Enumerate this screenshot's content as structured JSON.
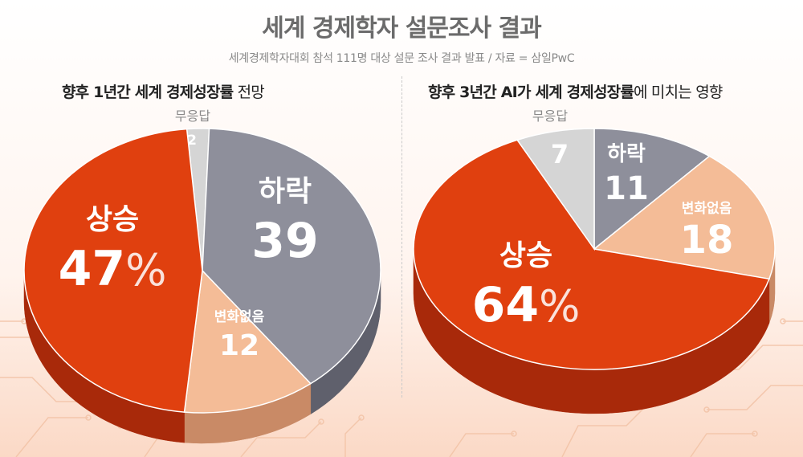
{
  "header": {
    "title": "세계 경제학자 설문조사 결과",
    "subtitle": "세계경제학자대회 참석 111명 대상 설문 조사 결과 발표 / 자료 = 삼일PwC"
  },
  "colors": {
    "up": "#e0400f",
    "up_side": "#a8290a",
    "down": "#8e8f9b",
    "down_side": "#5f606c",
    "nochange": "#f4bc97",
    "nochange_side": "#c98a66",
    "noanswer": "#d5d5d5",
    "noanswer_side": "#a9a9a9"
  },
  "chart_data": [
    {
      "type": "pie",
      "title_bold": "향후 1년간 세계 경제성장률",
      "title_rest": " 전망",
      "slices": [
        {
          "key": "noanswer",
          "label": "무응답",
          "value": 2
        },
        {
          "key": "down",
          "label": "하락",
          "value": 39
        },
        {
          "key": "nochange",
          "label": "변화없음",
          "value": 12
        },
        {
          "key": "up",
          "label": "상승",
          "value": 47,
          "unit": "%"
        }
      ]
    },
    {
      "type": "pie",
      "title_bold": "향후 3년간 AI가 세계 경제성장률",
      "title_rest": "에 미치는 영향",
      "slices": [
        {
          "key": "down",
          "label": "하락",
          "value": 11
        },
        {
          "key": "nochange",
          "label": "변화없음",
          "value": 18
        },
        {
          "key": "up",
          "label": "상승",
          "value": 64,
          "unit": "%"
        },
        {
          "key": "noanswer",
          "label": "무응답",
          "value": 7
        }
      ]
    }
  ]
}
